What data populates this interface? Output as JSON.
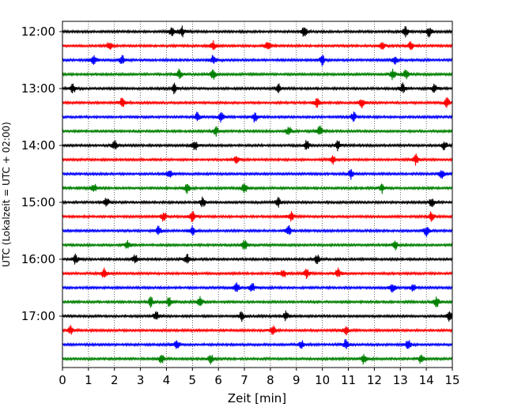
{
  "chart_data": {
    "type": "line",
    "title": "",
    "xlabel": "Zeit  [min]",
    "ylabel": "UTC (Lokalzeit = UTC + 02:00)",
    "xlim": [
      0,
      15
    ],
    "x_ticks": [
      0,
      1,
      2,
      3,
      4,
      5,
      6,
      7,
      8,
      9,
      10,
      11,
      12,
      13,
      14,
      15
    ],
    "x_tick_labels": [
      "0",
      "1",
      "2",
      "3",
      "4",
      "5",
      "6",
      "7",
      "8",
      "9",
      "10",
      "11",
      "12",
      "13",
      "14",
      "15"
    ],
    "y_tick_labels": [
      "12:00",
      "13:00",
      "14:00",
      "15:00",
      "16:00",
      "17:00"
    ],
    "grid": "vertical dotted at each minute",
    "trace_colors": [
      "#000000",
      "#ff0000",
      "#0000ff",
      "#008000"
    ],
    "traces": [
      {
        "start": "12:00",
        "color": "#000000",
        "events_min": [
          4.2,
          4.6,
          9.3,
          13.2,
          14.1
        ]
      },
      {
        "start": "12:15",
        "color": "#ff0000",
        "events_min": [
          1.8,
          5.8,
          7.9,
          12.3,
          13.4
        ]
      },
      {
        "start": "12:30",
        "color": "#0000ff",
        "events_min": [
          1.2,
          2.3,
          5.8,
          10.0,
          12.8
        ]
      },
      {
        "start": "12:45",
        "color": "#008000",
        "events_min": [
          4.5,
          5.8,
          12.7,
          13.2
        ]
      },
      {
        "start": "13:00",
        "color": "#000000",
        "events_min": [
          0.4,
          4.3,
          8.3,
          13.1,
          14.3
        ]
      },
      {
        "start": "13:15",
        "color": "#ff0000",
        "events_min": [
          2.3,
          9.8,
          11.5,
          14.8
        ]
      },
      {
        "start": "13:30",
        "color": "#0000ff",
        "events_min": [
          5.2,
          6.1,
          7.4,
          11.2
        ]
      },
      {
        "start": "13:45",
        "color": "#008000",
        "events_min": [
          5.9,
          8.7,
          9.9
        ]
      },
      {
        "start": "14:00",
        "color": "#000000",
        "events_min": [
          2.0,
          5.1,
          9.4,
          10.6,
          14.7
        ]
      },
      {
        "start": "14:15",
        "color": "#ff0000",
        "events_min": [
          6.7,
          10.4,
          13.6
        ]
      },
      {
        "start": "14:30",
        "color": "#0000ff",
        "events_min": [
          4.1,
          11.1,
          14.6
        ]
      },
      {
        "start": "14:45",
        "color": "#008000",
        "events_min": [
          1.2,
          4.8,
          7.0,
          12.3
        ]
      },
      {
        "start": "15:00",
        "color": "#000000",
        "events_min": [
          1.7,
          5.4,
          8.3,
          14.2
        ]
      },
      {
        "start": "15:15",
        "color": "#ff0000",
        "events_min": [
          3.9,
          5.0,
          8.8,
          14.2
        ]
      },
      {
        "start": "15:30",
        "color": "#0000ff",
        "events_min": [
          3.7,
          5.0,
          8.7,
          14.0
        ]
      },
      {
        "start": "15:45",
        "color": "#008000",
        "events_min": [
          2.5,
          7.0,
          12.8
        ]
      },
      {
        "start": "16:00",
        "color": "#000000",
        "events_min": [
          0.5,
          2.8,
          4.8,
          9.8
        ]
      },
      {
        "start": "16:15",
        "color": "#ff0000",
        "events_min": [
          1.6,
          8.5,
          9.4,
          10.6
        ]
      },
      {
        "start": "16:30",
        "color": "#0000ff",
        "events_min": [
          6.7,
          7.3,
          12.7,
          13.5
        ]
      },
      {
        "start": "16:45",
        "color": "#008000",
        "events_min": [
          3.4,
          4.1,
          5.3,
          14.4
        ]
      },
      {
        "start": "17:00",
        "color": "#000000",
        "events_min": [
          3.6,
          6.9,
          8.6,
          14.9
        ]
      },
      {
        "start": "17:15",
        "color": "#ff0000",
        "events_min": [
          0.3,
          8.1,
          10.9
        ]
      },
      {
        "start": "17:30",
        "color": "#0000ff",
        "events_min": [
          4.4,
          9.2,
          10.9,
          13.3
        ]
      },
      {
        "start": "17:45",
        "color": "#008000",
        "events_min": [
          3.8,
          5.7,
          11.6,
          13.8
        ]
      }
    ]
  }
}
